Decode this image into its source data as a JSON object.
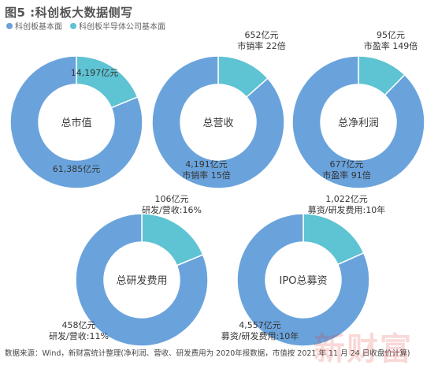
{
  "title": "图5 :科创板大数据侧写",
  "legend": [
    {
      "label": "科创板基本面",
      "color": "#6aa3dc"
    },
    {
      "label": "科创板半导体公司基本面",
      "color": "#5ec3d3"
    }
  ],
  "colors": {
    "main": "#6aa3dc",
    "semi": "#5ec3d3",
    "label": "#333333",
    "center": "#3a3a3a"
  },
  "chart_data": [
    {
      "type": "pie",
      "center_label": "总市值",
      "slices": [
        {
          "name": "科创板半导体公司基本面",
          "value": 14197,
          "label": "14,197亿元"
        },
        {
          "name": "科创板基本面",
          "value": 61385,
          "label": "61,385亿元"
        }
      ]
    },
    {
      "type": "pie",
      "center_label": "总营收",
      "slices": [
        {
          "name": "科创板半导体公司基本面",
          "value": 652,
          "label": "652亿元",
          "note": "市销率 22倍"
        },
        {
          "name": "科创板基本面",
          "value": 4191,
          "label": "4,191亿元",
          "note": "市销率 15倍"
        }
      ]
    },
    {
      "type": "pie",
      "center_label": "总净利润",
      "slices": [
        {
          "name": "科创板半导体公司基本面",
          "value": 95,
          "label": "95亿元",
          "note": "市盈率 149倍"
        },
        {
          "name": "科创板基本面",
          "value": 677,
          "label": "677亿元",
          "note": "市盈率 91倍"
        }
      ]
    },
    {
      "type": "pie",
      "center_label": "总研发费用",
      "slices": [
        {
          "name": "科创板半导体公司基本面",
          "value": 106,
          "label": "106亿元",
          "note": "研发/营收:16%"
        },
        {
          "name": "科创板基本面",
          "value": 458,
          "label": "458亿元",
          "note": "研发/营收:11%"
        }
      ]
    },
    {
      "type": "pie",
      "center_label": "IPO总募资",
      "slices": [
        {
          "name": "科创板半导体公司基本面",
          "value": 1022,
          "label": "1,022亿元",
          "note": "募资/研发费用:10年"
        },
        {
          "name": "科创板基本面",
          "value": 4557,
          "label": "4,557亿元",
          "note": "募资/研发费用:10年"
        }
      ]
    }
  ],
  "source": "数据来源：Wind，新财富统计整理(净利润、营收、研发费用为 2020年报数据，市值按 2021 年 11 月 24 日收盘价计算)",
  "watermark": "新财富"
}
